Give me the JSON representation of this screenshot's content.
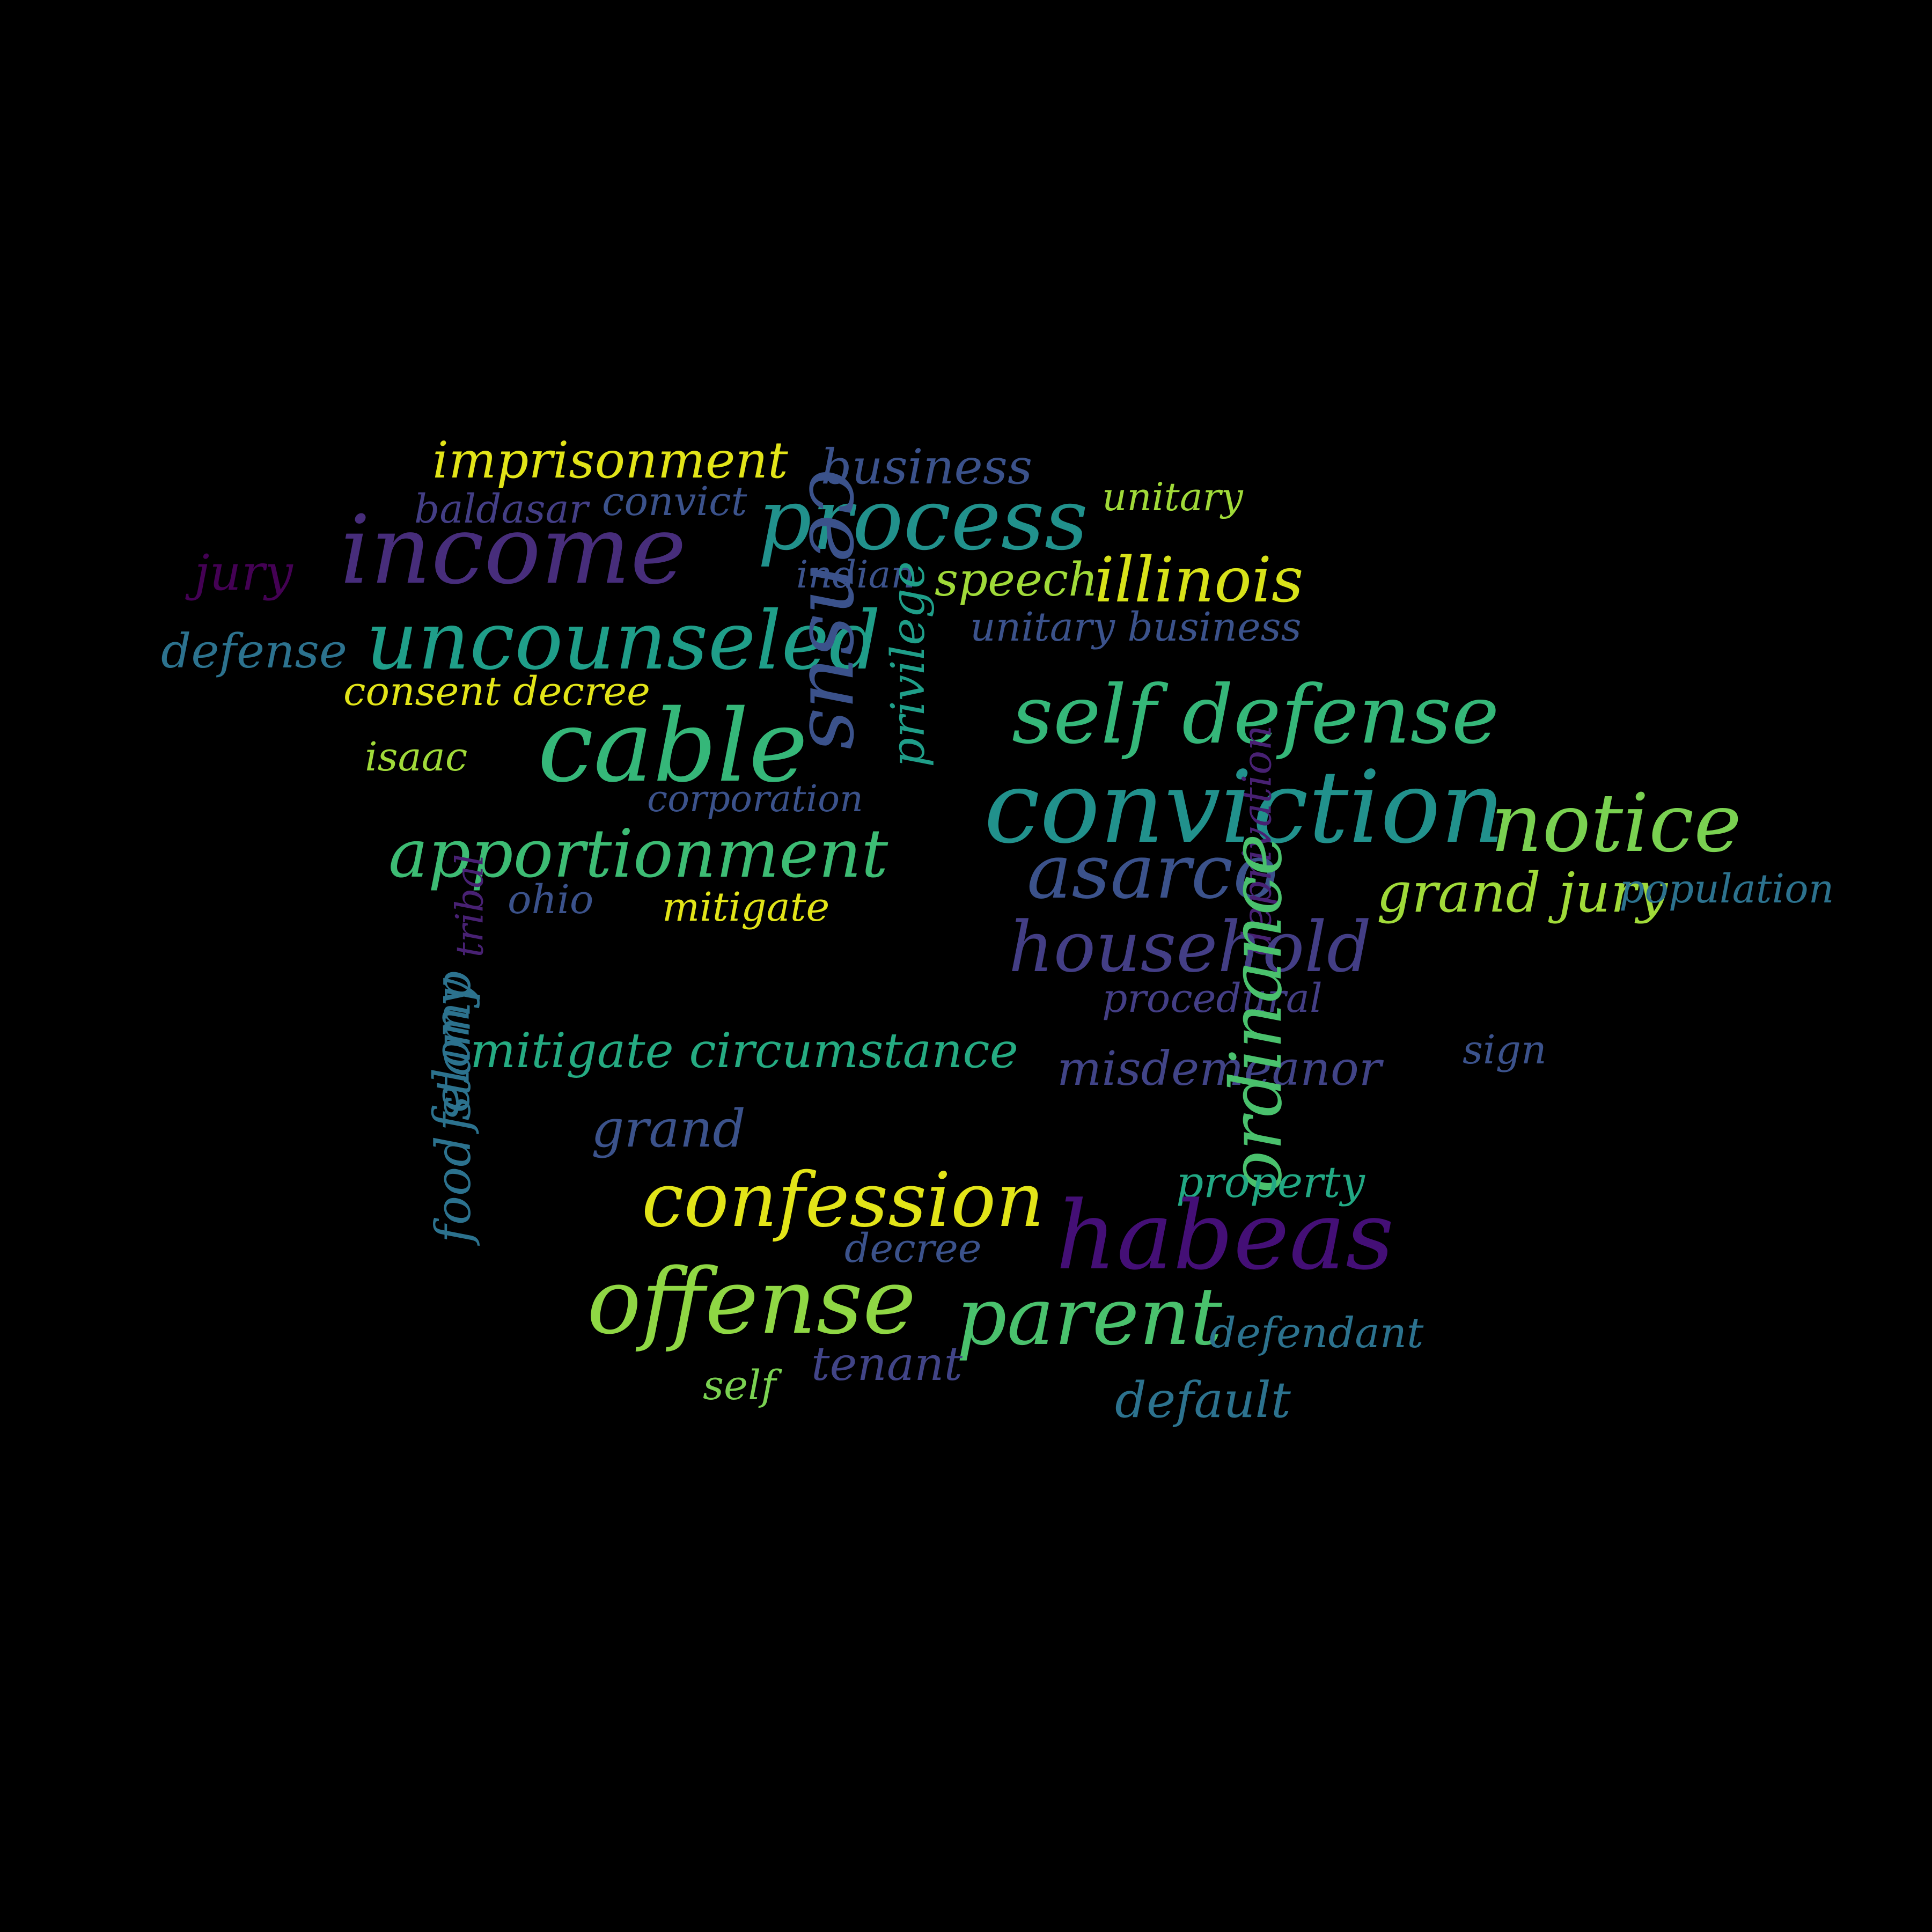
{
  "background": "#000000",
  "words": [
    {
      "text": "imprisonment",
      "color": "#e2e418"
    },
    {
      "text": "business",
      "color": "#3b528b"
    },
    {
      "text": "unitary",
      "color": "#a0da39"
    },
    {
      "text": "baldasar",
      "color": "#433e85"
    },
    {
      "text": "convict",
      "color": "#3b528b"
    },
    {
      "text": "process",
      "color": "#21918c"
    },
    {
      "text": "income",
      "color": "#472d7b"
    },
    {
      "text": "jury",
      "color": "#440154"
    },
    {
      "text": "indian",
      "color": "#3b528b"
    },
    {
      "text": "speech",
      "color": "#a0da39"
    },
    {
      "text": "illinois",
      "color": "#d8e219"
    },
    {
      "text": "defense",
      "color": "#2c728e"
    },
    {
      "text": "uncounseled",
      "color": "#1f9e89"
    },
    {
      "text": "census",
      "color": "#3b528b"
    },
    {
      "text": "unitary business",
      "color": "#3b528b"
    },
    {
      "text": "consent decree",
      "color": "#e2e418"
    },
    {
      "text": "self defense",
      "color": "#35b779"
    },
    {
      "text": "isaac",
      "color": "#a0da39"
    },
    {
      "text": "cable",
      "color": "#35b779"
    },
    {
      "text": "privilege",
      "color": "#1f9e89"
    },
    {
      "text": "corporation",
      "color": "#3b528b"
    },
    {
      "text": "conviction",
      "color": "#21918c"
    },
    {
      "text": "notice",
      "color": "#7ad151"
    },
    {
      "text": "apportionment",
      "color": "#3dbc74"
    },
    {
      "text": "asarco",
      "color": "#3b528b"
    },
    {
      "text": "grand jury",
      "color": "#a0da39"
    },
    {
      "text": "population",
      "color": "#2c728e"
    },
    {
      "text": "ohio",
      "color": "#3b528b"
    },
    {
      "text": "mitigate",
      "color": "#e2e418"
    },
    {
      "text": "tribal",
      "color": "#482173"
    },
    {
      "text": "deprivation",
      "color": "#482173"
    },
    {
      "text": "household",
      "color": "#433e85"
    },
    {
      "text": "procedural",
      "color": "#433e85"
    },
    {
      "text": "mitigate circumstance",
      "color": "#25ab82"
    },
    {
      "text": "misdemeanor",
      "color": "#414487"
    },
    {
      "text": "ordinance",
      "color": "#4ac16d"
    },
    {
      "text": "sign",
      "color": "#3b528b"
    },
    {
      "text": "felony",
      "color": "#2c728e"
    },
    {
      "text": "food stamp",
      "color": "#2c728e"
    },
    {
      "text": "grand",
      "color": "#3b528b"
    },
    {
      "text": "property",
      "color": "#22a884"
    },
    {
      "text": "confession",
      "color": "#e2e418"
    },
    {
      "text": "habeas",
      "color": "#440f76"
    },
    {
      "text": "decree",
      "color": "#3b528b"
    },
    {
      "text": "offense",
      "color": "#8fd744"
    },
    {
      "text": "parent",
      "color": "#4ac16d"
    },
    {
      "text": "defendant",
      "color": "#2c728e"
    },
    {
      "text": "tenant",
      "color": "#414487"
    },
    {
      "text": "self",
      "color": "#7ad151"
    },
    {
      "text": "default",
      "color": "#2c728e"
    }
  ]
}
